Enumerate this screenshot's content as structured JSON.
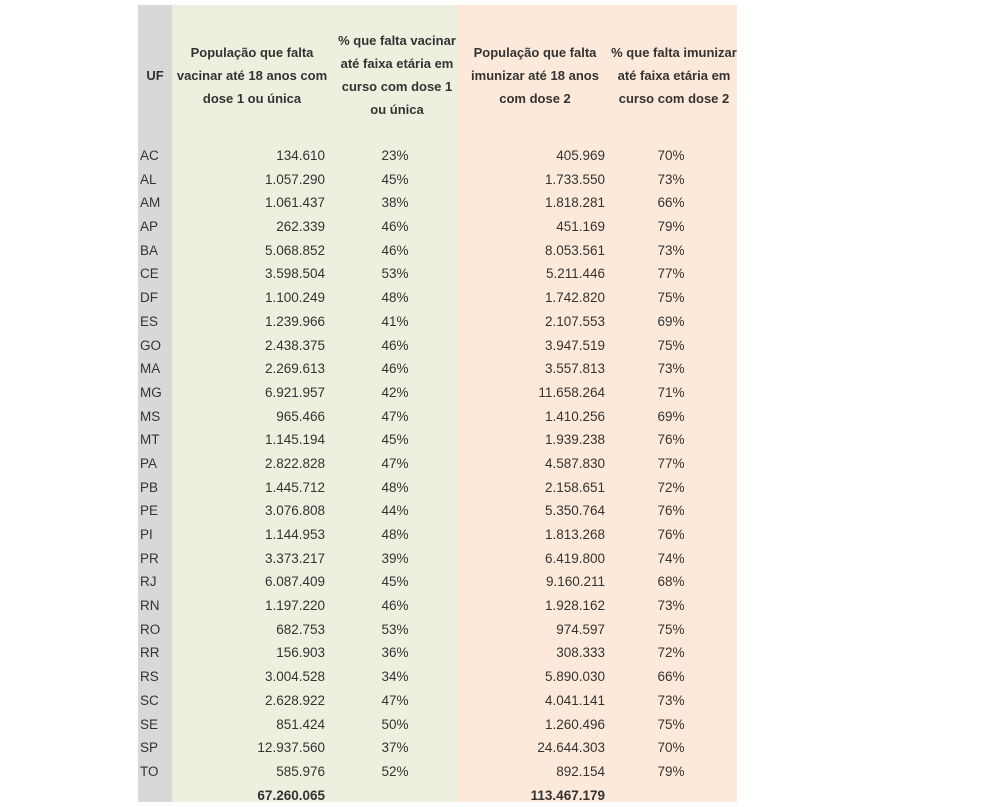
{
  "colors": {
    "uf_column": "#d8d8d8",
    "dose1_columns": "#ebf1de",
    "dose2_columns": "#fde9d9"
  },
  "headers": {
    "uf": "UF",
    "pop_dose1": "População que falta vacinar até 18 anos com dose 1 ou única",
    "pct_dose1": "% que falta vacinar até faixa etária em curso com dose 1 ou única",
    "pop_dose2": "População que falta imunizar até 18 anos com dose 2",
    "pct_dose2": "% que falta imunizar até faixa etária em curso com dose 2"
  },
  "rows": [
    {
      "uf": "AC",
      "pop1": "134.610",
      "pct1": "23%",
      "pop2": "405.969",
      "pct2": "70%"
    },
    {
      "uf": "AL",
      "pop1": "1.057.290",
      "pct1": "45%",
      "pop2": "1.733.550",
      "pct2": "73%"
    },
    {
      "uf": "AM",
      "pop1": "1.061.437",
      "pct1": "38%",
      "pop2": "1.818.281",
      "pct2": "66%"
    },
    {
      "uf": "AP",
      "pop1": "262.339",
      "pct1": "46%",
      "pop2": "451.169",
      "pct2": "79%"
    },
    {
      "uf": "BA",
      "pop1": "5.068.852",
      "pct1": "46%",
      "pop2": "8.053.561",
      "pct2": "73%"
    },
    {
      "uf": "CE",
      "pop1": "3.598.504",
      "pct1": "53%",
      "pop2": "5.211.446",
      "pct2": "77%"
    },
    {
      "uf": "DF",
      "pop1": "1.100.249",
      "pct1": "48%",
      "pop2": "1.742.820",
      "pct2": "75%"
    },
    {
      "uf": "ES",
      "pop1": "1.239.966",
      "pct1": "41%",
      "pop2": "2.107.553",
      "pct2": "69%"
    },
    {
      "uf": "GO",
      "pop1": "2.438.375",
      "pct1": "46%",
      "pop2": "3.947.519",
      "pct2": "75%"
    },
    {
      "uf": "MA",
      "pop1": "2.269.613",
      "pct1": "46%",
      "pop2": "3.557.813",
      "pct2": "73%"
    },
    {
      "uf": "MG",
      "pop1": "6.921.957",
      "pct1": "42%",
      "pop2": "11.658.264",
      "pct2": "71%"
    },
    {
      "uf": "MS",
      "pop1": "965.466",
      "pct1": "47%",
      "pop2": "1.410.256",
      "pct2": "69%"
    },
    {
      "uf": "MT",
      "pop1": "1.145.194",
      "pct1": "45%",
      "pop2": "1.939.238",
      "pct2": "76%"
    },
    {
      "uf": "PA",
      "pop1": "2.822.828",
      "pct1": "47%",
      "pop2": "4.587.830",
      "pct2": "77%"
    },
    {
      "uf": "PB",
      "pop1": "1.445.712",
      "pct1": "48%",
      "pop2": "2.158.651",
      "pct2": "72%"
    },
    {
      "uf": "PE",
      "pop1": "3.076.808",
      "pct1": "44%",
      "pop2": "5.350.764",
      "pct2": "76%"
    },
    {
      "uf": "PI",
      "pop1": "1.144.953",
      "pct1": "48%",
      "pop2": "1.813.268",
      "pct2": "76%"
    },
    {
      "uf": "PR",
      "pop1": "3.373.217",
      "pct1": "39%",
      "pop2": "6.419.800",
      "pct2": "74%"
    },
    {
      "uf": "RJ",
      "pop1": "6.087.409",
      "pct1": "45%",
      "pop2": "9.160.211",
      "pct2": "68%"
    },
    {
      "uf": "RN",
      "pop1": "1.197.220",
      "pct1": "46%",
      "pop2": "1.928.162",
      "pct2": "73%"
    },
    {
      "uf": "RO",
      "pop1": "682.753",
      "pct1": "53%",
      "pop2": "974.597",
      "pct2": "75%"
    },
    {
      "uf": "RR",
      "pop1": "156.903",
      "pct1": "36%",
      "pop2": "308.333",
      "pct2": "72%"
    },
    {
      "uf": "RS",
      "pop1": "3.004.528",
      "pct1": "34%",
      "pop2": "5.890.030",
      "pct2": "66%"
    },
    {
      "uf": "SC",
      "pop1": "2.628.922",
      "pct1": "47%",
      "pop2": "4.041.141",
      "pct2": "73%"
    },
    {
      "uf": "SE",
      "pop1": "851.424",
      "pct1": "50%",
      "pop2": "1.260.496",
      "pct2": "75%"
    },
    {
      "uf": "SP",
      "pop1": "12.937.560",
      "pct1": "37%",
      "pop2": "24.644.303",
      "pct2": "70%"
    },
    {
      "uf": "TO",
      "pop1": "585.976",
      "pct1": "52%",
      "pop2": "892.154",
      "pct2": "79%"
    }
  ],
  "totals": {
    "pop1": "67.260.065",
    "pop2": "113.467.179"
  }
}
